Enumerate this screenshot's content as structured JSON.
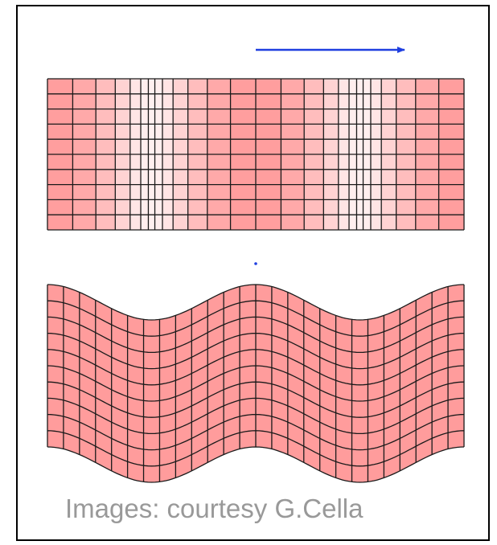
{
  "caption": "Images: courtesy G.Cella",
  "colors": {
    "arrow": "#1f3fe0",
    "grid_line": "#1a1a1a",
    "fill_base": "#ff9c9c",
    "fill_light": "#fff0f0",
    "frame": "#000000",
    "caption_text": "#999999"
  },
  "icons": [
    "arrow-right-icon"
  ],
  "top_panel": {
    "description_type": "longitudinal wave grid",
    "columns": 26,
    "rows": 10,
    "compression_regions": 2
  },
  "bottom_panel": {
    "description_type": "transverse wave grid",
    "columns": 26,
    "rows": 10,
    "wave_periods": 2
  }
}
